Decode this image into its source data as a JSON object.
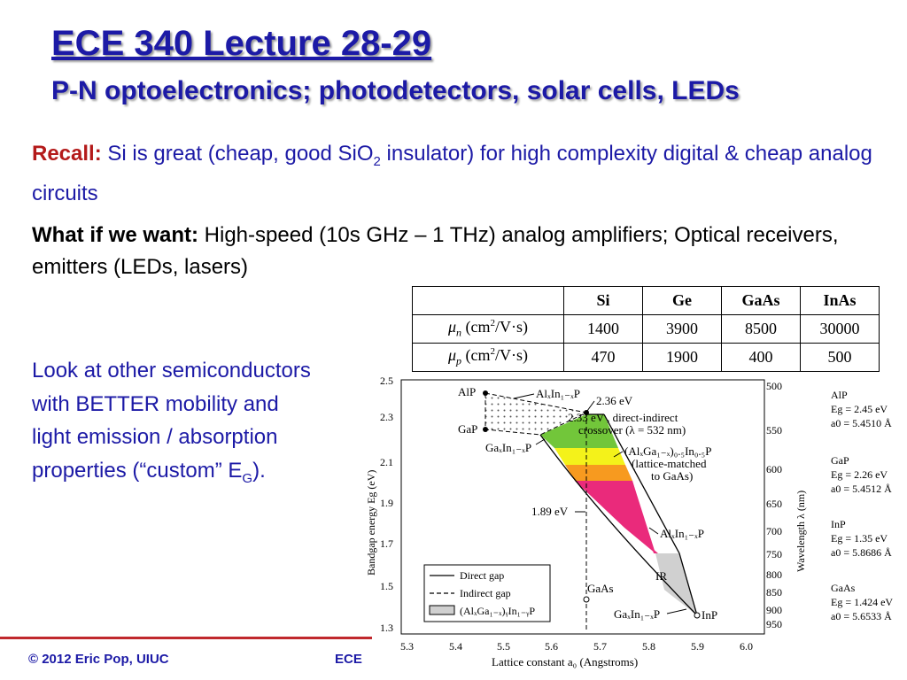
{
  "header": {
    "title": "ECE 340 Lecture 28-29",
    "subtitle": "P-N optoelectronics; photodetectors, solar cells, LEDs"
  },
  "recall": {
    "label": "Recall:",
    "text_a": " Si is great (cheap, good SiO",
    "sub": "2",
    "text_b": " insulator) for high complexity digital & cheap analog circuits"
  },
  "want": {
    "label": "What if we want:",
    "text": " High-speed (10s GHz – 1 THz) analog amplifiers; Optical receivers, emitters (LEDs, lasers)"
  },
  "look": {
    "text": "Look at other semiconductors with BETTER mobility and light emission / absorption properties (“custom” E",
    "sub": "G",
    "end": ")."
  },
  "table": {
    "headers": [
      "Si",
      "Ge",
      "GaAs",
      "InAs"
    ],
    "rows": [
      {
        "sym": "μ",
        "sub": "n",
        "unit_a": " (cm",
        "sup": "2",
        "unit_b": "/V·s)",
        "values": [
          "1400",
          "3900",
          "8500",
          "30000"
        ]
      },
      {
        "sym": "μ",
        "sub": "p",
        "unit_a": " (cm",
        "sup": "2",
        "unit_b": "/V·s)",
        "values": [
          "470",
          "1900",
          "400",
          "500"
        ]
      }
    ]
  },
  "figure": {
    "x_label": "Lattice constant  a₀  (Angstroms)",
    "y_left_label": "Bandgap energy  Eg  (eV)",
    "y_right_label": "Wavelength  λ  (nm)",
    "x_ticks": [
      "5.3",
      "5.4",
      "5.5",
      "5.6",
      "5.7",
      "5.8",
      "5.9",
      "6.0"
    ],
    "y_ticks": [
      "2.5",
      "2.3",
      "2.1",
      "1.9",
      "1.7",
      "1.5",
      "1.3"
    ],
    "wl_ticks": [
      "500",
      "550",
      "600",
      "650",
      "700",
      "750",
      "800",
      "850",
      "900",
      "950"
    ],
    "ann_alp": "AlP",
    "ann_gap": "GaP",
    "ann_gaas": "GaAs",
    "ann_inp": "InP",
    "ann_ir": "IR",
    "ann_alinp": "AlₓIn₁₋ₓP",
    "ann_gainp": "GaₓIn₁₋ₓP",
    "ann_236": "2.36 eV",
    "ann_233a": "2.33 eV , direct-indirect",
    "ann_233b": "crossover (λ = 532 nm)",
    "ann_algainp_a": "(AlₓGa₁₋ₓ)₀.₅In₀.₅P",
    "ann_algainp_b": "(lattice-matched",
    "ann_algainp_c": "to GaAs)",
    "ann_189": "1.89 eV",
    "ann_alinp2": "AlₓIn₁₋ₓP",
    "ann_gainp2": "GaₓIn₁₋ₓP",
    "legend_direct": "Direct gap",
    "legend_indirect": "Indirect gap",
    "legend_box": "(AlₓGa₁₋ₓ)ᵧIn₁₋ᵧP",
    "materials": [
      {
        "name": "AlP",
        "eg": "Eg = 2.45 eV",
        "a0": "a0 = 5.4510 Å"
      },
      {
        "name": "GaP",
        "eg": "Eg = 2.26 eV",
        "a0": "a0 = 5.4512 Å"
      },
      {
        "name": "InP",
        "eg": "Eg = 1.35 eV",
        "a0": "a0 = 5.8686 Å"
      },
      {
        "name": "GaAs",
        "eg": "Eg = 1.424 eV",
        "a0": "a0 = 5.6533 Å"
      }
    ]
  },
  "footer": {
    "left": "© 2012 Eric Pop, UIUC",
    "mid": "ECE"
  },
  "colors": {
    "title_blue": "#1c1aa6",
    "recall_red": "#b41a1a",
    "rule_red": "#c0282d",
    "band_green": "#72c63a",
    "band_yellow": "#f4f21a",
    "band_orange": "#f79a1f",
    "band_pink": "#ea2a7b",
    "band_gray": "#d0d0d0"
  }
}
